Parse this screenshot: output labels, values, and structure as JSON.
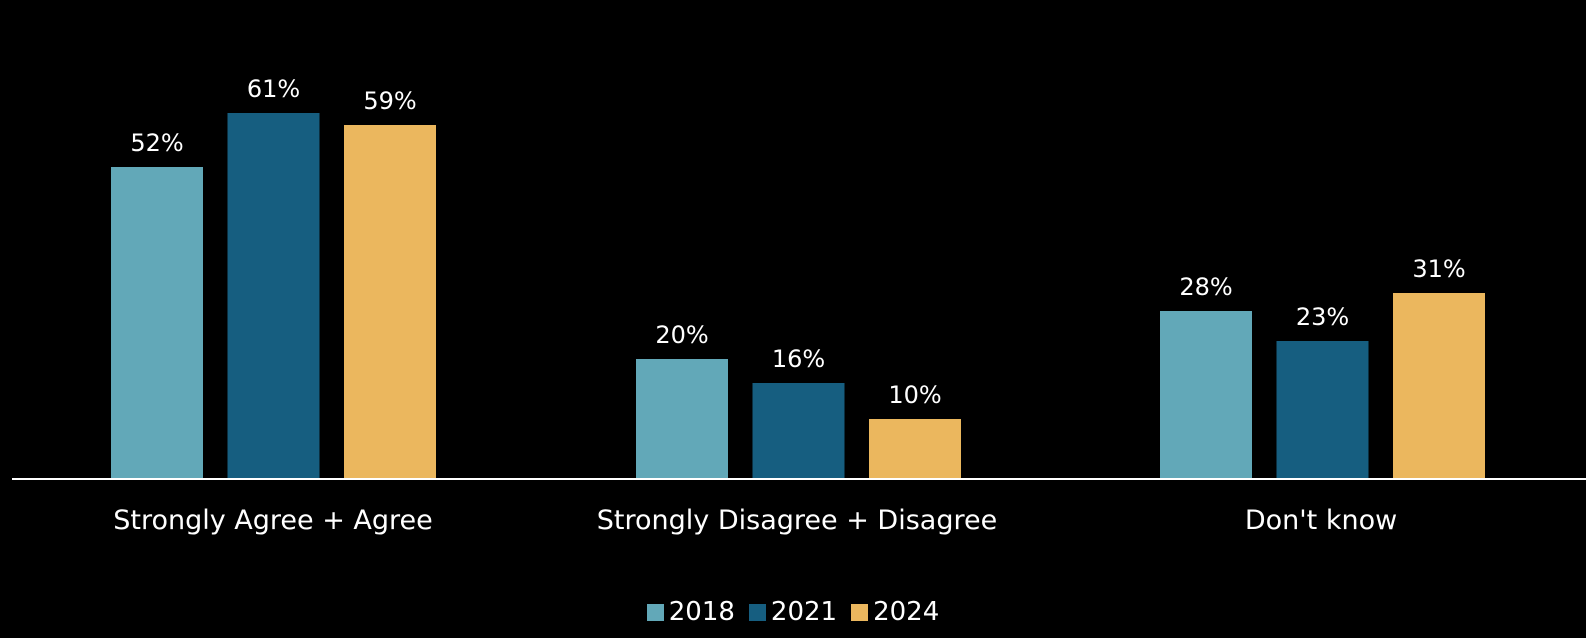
{
  "chart_data": {
    "type": "bar",
    "categories": [
      "Strongly Agree + Agree",
      "Strongly Disagree + Disagree",
      "Don't know"
    ],
    "series": [
      {
        "name": "2018",
        "values": [
          52,
          20,
          28
        ],
        "labels": [
          "52%",
          "20%",
          "28%"
        ],
        "color": "#62a8b8"
      },
      {
        "name": "2021",
        "values": [
          61,
          16,
          23
        ],
        "labels": [
          "61%",
          "16%",
          "23%"
        ],
        "color": "#165e80"
      },
      {
        "name": "2024",
        "values": [
          59,
          10,
          31
        ],
        "labels": [
          "59%",
          "10%",
          "31%"
        ],
        "color": "#ebb75e"
      }
    ],
    "ylim": [
      0,
      70
    ],
    "grid": false,
    "legend_position": "bottom"
  }
}
